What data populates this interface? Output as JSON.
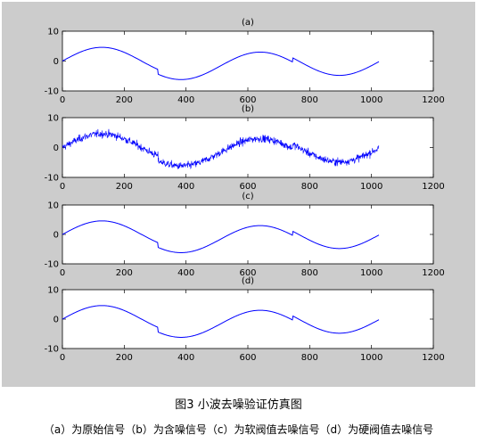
{
  "caption": {
    "title": "图3 小波去噪验证仿真图",
    "legend": "（a）为原始信号（b）为含噪信号（c）为软阀值去噪信号（d）为硬阀值去噪信号"
  },
  "colors": {
    "panel_bg": "#cccccc",
    "axes_bg": "#ffffff",
    "line": "#0000ff",
    "axis": "#000000"
  },
  "chart_data": [
    {
      "type": "line",
      "title": "(a)",
      "signal": "clean",
      "xlim": [
        0,
        1200
      ],
      "ylim": [
        -10,
        10
      ],
      "xticks": [
        0,
        200,
        400,
        600,
        800,
        1000,
        1200
      ],
      "yticks": [
        -10,
        0,
        10
      ],
      "sample_points": {
        "x": [
          0,
          125,
          310,
          380,
          640,
          745,
          900,
          1024
        ],
        "y": [
          0,
          4.1,
          -2.2,
          -6.0,
          1.9,
          -1.0,
          -4.1,
          -0.4
        ]
      }
    },
    {
      "type": "line",
      "title": "(b)",
      "signal": "noisy",
      "xlim": [
        0,
        1200
      ],
      "ylim": [
        -10,
        10
      ],
      "xticks": [
        0,
        200,
        400,
        600,
        800,
        1000,
        1200
      ],
      "yticks": [
        -10,
        0,
        10
      ],
      "sample_points": {
        "x": [
          0,
          125,
          310,
          380,
          640,
          745,
          900,
          1024
        ],
        "y": [
          0,
          4.1,
          -2.2,
          -6.0,
          1.9,
          -1.0,
          -4.1,
          -0.4
        ]
      }
    },
    {
      "type": "line",
      "title": "(c)",
      "signal": "clean",
      "xlim": [
        0,
        1200
      ],
      "ylim": [
        -10,
        10
      ],
      "xticks": [
        0,
        200,
        400,
        600,
        800,
        1000,
        1200
      ],
      "yticks": [
        -10,
        0,
        10
      ],
      "sample_points": {
        "x": [
          0,
          125,
          310,
          380,
          640,
          745,
          900,
          1024
        ],
        "y": [
          0,
          4.1,
          -2.2,
          -6.0,
          1.9,
          -1.0,
          -4.1,
          -0.4
        ]
      }
    },
    {
      "type": "line",
      "title": "(d)",
      "signal": "clean",
      "xlim": [
        0,
        1200
      ],
      "ylim": [
        -10,
        10
      ],
      "xticks": [
        0,
        200,
        400,
        600,
        800,
        1000,
        1200
      ],
      "yticks": [
        -10,
        0,
        10
      ],
      "sample_points": {
        "x": [
          0,
          125,
          310,
          380,
          640,
          745,
          900,
          1024
        ],
        "y": [
          0,
          4.1,
          -2.2,
          -6.0,
          1.9,
          -1.0,
          -4.1,
          -0.4
        ]
      }
    }
  ]
}
